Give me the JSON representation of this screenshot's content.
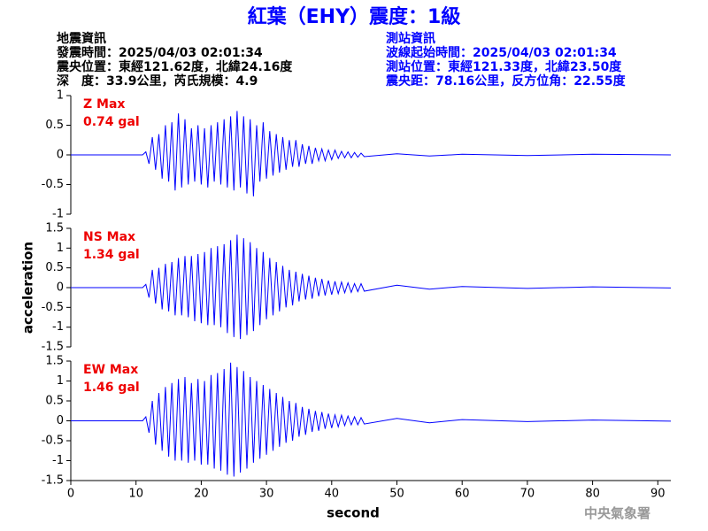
{
  "header": {
    "title": "紅葉（EHY）震度：1級",
    "left_lines": [
      "地震資訊",
      "發震時間：2025/04/03 02:01:34",
      "震央位置：東經121.62度，北緯24.16度",
      "深　度：33.9公里，芮氏規模：4.9"
    ],
    "right_lines": [
      "測站資訊",
      "波線起始時間：2025/04/03 02:01:34",
      "測站位置：東經121.33度，北緯23.50度",
      "震央距：78.16公里，反方位角：22.55度"
    ]
  },
  "chart_data": [
    {
      "type": "line",
      "annotation": "Z Max",
      "annotation_value": "0.74 gal",
      "xlim": [
        0,
        92
      ],
      "ylim": [
        -1,
        1
      ],
      "yticks": [
        -1,
        -0.5,
        0,
        0.5,
        1
      ],
      "x": [
        0,
        11,
        11.5,
        12,
        12.5,
        13,
        13.5,
        14,
        14.5,
        15,
        15.5,
        16,
        16.5,
        17,
        17.5,
        18,
        18.5,
        19,
        19.5,
        20,
        20.5,
        21,
        21.5,
        22,
        22.5,
        23,
        23.5,
        24,
        24.5,
        25,
        25.5,
        26,
        26.5,
        27,
        27.5,
        28,
        28.5,
        29,
        29.5,
        30,
        30.5,
        31,
        31.5,
        32,
        32.5,
        33,
        33.5,
        34,
        34.5,
        35,
        35.5,
        36,
        36.5,
        37,
        37.5,
        38,
        38.5,
        39,
        39.5,
        40,
        40.5,
        41,
        41.5,
        42,
        42.5,
        43,
        43.5,
        44,
        44.5,
        45,
        50,
        55,
        60,
        70,
        80,
        92
      ],
      "series": [
        {
          "color": "#0000ff",
          "values": [
            0,
            0,
            0.05,
            -0.15,
            0.3,
            -0.25,
            0.35,
            -0.4,
            0.5,
            -0.45,
            0.55,
            -0.6,
            0.7,
            -0.55,
            0.6,
            -0.5,
            0.45,
            -0.45,
            0.5,
            -0.5,
            0.45,
            -0.55,
            0.5,
            -0.45,
            0.55,
            -0.5,
            0.6,
            -0.55,
            0.65,
            -0.6,
            0.74,
            -0.55,
            0.65,
            -0.65,
            0.6,
            -0.7,
            0.5,
            -0.45,
            0.55,
            -0.4,
            0.4,
            -0.35,
            0.35,
            -0.3,
            0.3,
            -0.25,
            0.25,
            -0.2,
            0.25,
            -0.2,
            0.18,
            -0.15,
            0.15,
            -0.15,
            0.12,
            -0.1,
            0.1,
            -0.1,
            0.08,
            -0.08,
            0.08,
            -0.06,
            0.06,
            -0.05,
            0.05,
            -0.05,
            0.04,
            -0.04,
            0.03,
            -0.03,
            0.02,
            -0.02,
            0.01,
            -0.01,
            0.01,
            0
          ]
        }
      ]
    },
    {
      "type": "line",
      "annotation": "NS Max",
      "annotation_value": "1.34 gal",
      "ylabel": "acceleration",
      "xlim": [
        0,
        92
      ],
      "ylim": [
        -1.5,
        1.5
      ],
      "yticks": [
        -1.5,
        -1,
        -0.5,
        0,
        0.5,
        1,
        1.5
      ],
      "x": [
        0,
        11,
        11.5,
        12,
        12.5,
        13,
        13.5,
        14,
        14.5,
        15,
        15.5,
        16,
        16.5,
        17,
        17.5,
        18,
        18.5,
        19,
        19.5,
        20,
        20.5,
        21,
        21.5,
        22,
        22.5,
        23,
        23.5,
        24,
        24.5,
        25,
        25.5,
        26,
        26.5,
        27,
        27.5,
        28,
        28.5,
        29,
        29.5,
        30,
        30.5,
        31,
        31.5,
        32,
        32.5,
        33,
        33.5,
        34,
        34.5,
        35,
        35.5,
        36,
        36.5,
        37,
        37.5,
        38,
        38.5,
        39,
        39.5,
        40,
        40.5,
        41,
        41.5,
        42,
        42.5,
        43,
        43.5,
        44,
        44.5,
        45,
        50,
        55,
        60,
        70,
        80,
        92
      ],
      "series": [
        {
          "color": "#0000ff",
          "values": [
            0,
            0,
            0.08,
            -0.25,
            0.45,
            -0.4,
            0.5,
            -0.55,
            0.6,
            -0.6,
            0.65,
            -0.7,
            0.75,
            -0.7,
            0.8,
            -0.75,
            0.8,
            -0.85,
            0.85,
            -0.9,
            0.9,
            -0.95,
            1.0,
            -0.95,
            1.05,
            -1.0,
            1.1,
            -1.15,
            1.2,
            -1.25,
            1.34,
            -1.3,
            1.25,
            -1.2,
            1.15,
            -1.1,
            1.0,
            -0.95,
            0.9,
            -0.8,
            0.75,
            -0.7,
            0.65,
            -0.6,
            0.55,
            -0.5,
            0.45,
            -0.45,
            0.4,
            -0.35,
            0.35,
            -0.3,
            0.3,
            -0.28,
            0.25,
            -0.22,
            0.22,
            -0.2,
            0.18,
            -0.18,
            0.16,
            -0.15,
            0.14,
            -0.13,
            0.12,
            -0.12,
            0.1,
            -0.1,
            0.1,
            -0.09,
            0.06,
            -0.04,
            0.03,
            -0.02,
            0.02,
            -0.01
          ]
        }
      ]
    },
    {
      "type": "line",
      "annotation": "EW Max",
      "annotation_value": "1.46 gal",
      "xlabel": "second",
      "xlim": [
        0,
        92
      ],
      "ylim": [
        -1.5,
        1.5
      ],
      "yticks": [
        -1.5,
        -1,
        -0.5,
        0,
        0.5,
        1,
        1.5
      ],
      "xticks": [
        0,
        10,
        20,
        30,
        40,
        50,
        60,
        70,
        80,
        90
      ],
      "x": [
        0,
        11,
        11.5,
        12,
        12.5,
        13,
        13.5,
        14,
        14.5,
        15,
        15.5,
        16,
        16.5,
        17,
        17.5,
        18,
        18.5,
        19,
        19.5,
        20,
        20.5,
        21,
        21.5,
        22,
        22.5,
        23,
        23.5,
        24,
        24.5,
        25,
        25.5,
        26,
        26.5,
        27,
        27.5,
        28,
        28.5,
        29,
        29.5,
        30,
        30.5,
        31,
        31.5,
        32,
        32.5,
        33,
        33.5,
        34,
        34.5,
        35,
        35.5,
        36,
        36.5,
        37,
        37.5,
        38,
        38.5,
        39,
        39.5,
        40,
        40.5,
        41,
        41.5,
        42,
        42.5,
        43,
        43.5,
        44,
        44.5,
        45,
        50,
        55,
        60,
        70,
        80,
        92
      ],
      "series": [
        {
          "color": "#0000ff",
          "values": [
            0,
            0,
            0.1,
            -0.3,
            0.5,
            -0.6,
            0.7,
            -0.75,
            0.85,
            -0.9,
            0.95,
            -1.0,
            1.05,
            -1.0,
            1.1,
            -1.05,
            0.95,
            -1.0,
            1.05,
            -1.1,
            1.0,
            -1.1,
            1.15,
            -1.2,
            1.2,
            -1.25,
            1.3,
            -1.35,
            1.46,
            -1.4,
            1.35,
            -1.3,
            1.25,
            -1.2,
            1.1,
            -1.05,
            1.0,
            -0.95,
            0.9,
            -0.85,
            0.8,
            -0.75,
            0.7,
            -0.65,
            0.6,
            -0.55,
            0.5,
            -0.5,
            0.45,
            -0.4,
            0.35,
            -0.35,
            0.3,
            -0.28,
            0.25,
            -0.25,
            0.22,
            -0.2,
            0.18,
            -0.18,
            0.15,
            -0.15,
            0.14,
            -0.12,
            0.12,
            -0.1,
            0.1,
            -0.1,
            0.08,
            -0.08,
            0.06,
            -0.05,
            0.03,
            -0.02,
            0.02,
            -0.01
          ]
        }
      ]
    }
  ],
  "footer": "中央氣象署"
}
